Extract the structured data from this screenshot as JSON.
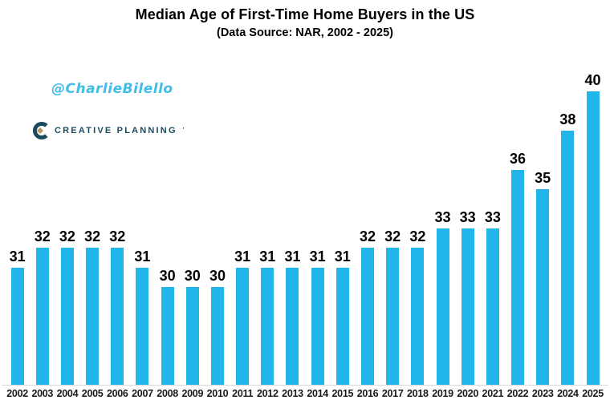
{
  "watermark": {
    "handle": "@CharlieBilello",
    "color": "#41bde8"
  },
  "brand": {
    "name": "CREATIVE PLANNING",
    "trademark": "'",
    "text_color": "#1b4a5e",
    "icon_c_color": "#1b4a5e",
    "icon_diamond_color": "#b39a60"
  },
  "chart_data": {
    "type": "bar",
    "title": "Median Age of First-Time Home Buyers in the US",
    "subtitle": "(Data Source: NAR, 2002 - 2025)",
    "categories": [
      "2002",
      "2003",
      "2004",
      "2005",
      "2006",
      "2007",
      "2008",
      "2009",
      "2010",
      "2011",
      "2012",
      "2013",
      "2014",
      "2015",
      "2016",
      "2017",
      "2018",
      "2019",
      "2020",
      "2021",
      "2022",
      "2023",
      "2024",
      "2025"
    ],
    "values": [
      31,
      32,
      32,
      32,
      32,
      31,
      30,
      30,
      30,
      31,
      31,
      31,
      31,
      31,
      32,
      32,
      32,
      33,
      33,
      33,
      36,
      35,
      38,
      40
    ],
    "xlabel": "",
    "ylabel": "",
    "ylim": [
      25,
      41
    ],
    "bar_color": "#22b5e9",
    "axis_line_color": "#d9d9d9",
    "data_labels": true,
    "gridlines": false,
    "legend": "none",
    "y_axis_visible": false
  }
}
